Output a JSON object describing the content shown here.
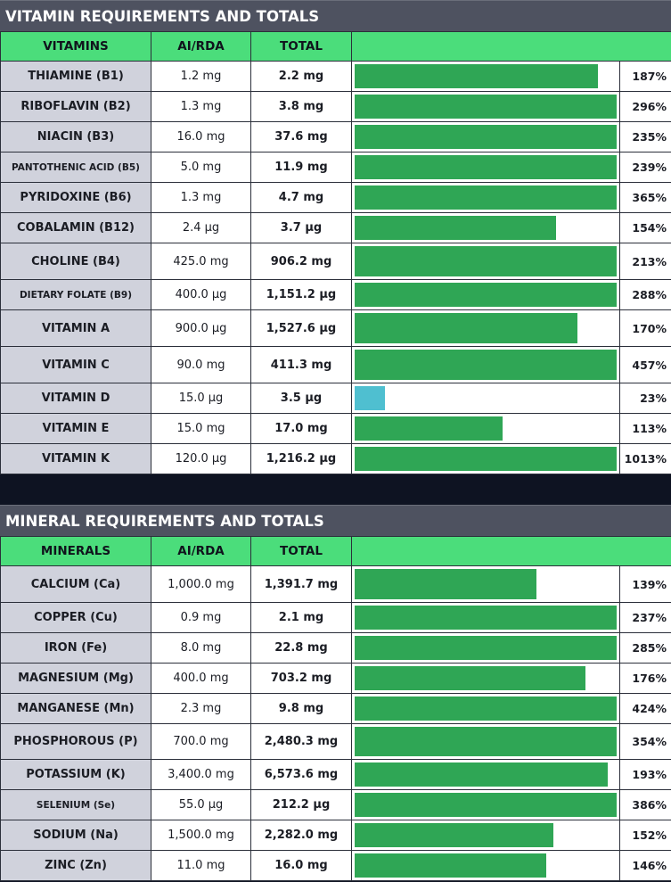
{
  "vitamins": {
    "title": "VITAMIN REQUIREMENTS AND TOTALS",
    "headers": [
      "VITAMINS",
      "AI/RDA",
      "TOTAL"
    ],
    "rows": [
      {
        "name": "THIAMINE (B1)",
        "rda": "1.2 mg",
        "total": "2.2 mg",
        "pct": "187%",
        "fill": 0.93
      },
      {
        "name": "RIBOFLAVIN (B2)",
        "rda": "1.3 mg",
        "total": "3.8 mg",
        "pct": "296%",
        "fill": 1.0
      },
      {
        "name": "NIACIN (B3)",
        "rda": "16.0 mg",
        "total": "37.6 mg",
        "pct": "235%",
        "fill": 1.0
      },
      {
        "name": "PANTOTHENIC ACID (B5)",
        "rda": "5.0 mg",
        "total": "11.9 mg",
        "pct": "239%",
        "fill": 1.0,
        "small": true
      },
      {
        "name": "PYRIDOXINE (B6)",
        "rda": "1.3 mg",
        "total": "4.7 mg",
        "pct": "365%",
        "fill": 1.0
      },
      {
        "name": "COBALAMIN (B12)",
        "rda": "2.4 µg",
        "total": "3.7 µg",
        "pct": "154%",
        "fill": 0.77
      },
      {
        "name": "CHOLINE (B4)",
        "rda": "425.0 mg",
        "total": "906.2 mg",
        "pct": "213%",
        "fill": 1.0
      },
      {
        "name": "DIETARY FOLATE (B9)",
        "rda": "400.0 µg",
        "total": "1,151.2 µg",
        "pct": "288%",
        "fill": 1.0,
        "small": true
      },
      {
        "name": "VITAMIN A",
        "rda": "900.0 µg",
        "total": "1,527.6 µg",
        "pct": "170%",
        "fill": 0.85
      },
      {
        "name": "VITAMIN C",
        "rda": "90.0 mg",
        "total": "411.3 mg",
        "pct": "457%",
        "fill": 1.0
      },
      {
        "name": "VITAMIN D",
        "rda": "15.0 µg",
        "total": "3.5 µg",
        "pct": "23%",
        "fill": 0.115,
        "low": true
      },
      {
        "name": "VITAMIN E",
        "rda": "15.0 mg",
        "total": "17.0 mg",
        "pct": "113%",
        "fill": 0.565
      },
      {
        "name": "VITAMIN K",
        "rda": "120.0 µg",
        "total": "1,216.2 µg",
        "pct": "1013%",
        "fill": 1.0
      }
    ]
  },
  "minerals": {
    "title": "MINERAL REQUIREMENTS AND TOTALS",
    "headers": [
      "MINERALS",
      "AI/RDA",
      "TOTAL"
    ],
    "rows": [
      {
        "name": "CALCIUM (Ca)",
        "rda": "1,000.0 mg",
        "total": "1,391.7 mg",
        "pct": "139%",
        "fill": 0.695
      },
      {
        "name": "COPPER (Cu)",
        "rda": "0.9 mg",
        "total": "2.1 mg",
        "pct": "237%",
        "fill": 1.0
      },
      {
        "name": "IRON (Fe)",
        "rda": "8.0 mg",
        "total": "22.8 mg",
        "pct": "285%",
        "fill": 1.0
      },
      {
        "name": "MAGNESIUM (Mg)",
        "rda": "400.0 mg",
        "total": "703.2 mg",
        "pct": "176%",
        "fill": 0.88
      },
      {
        "name": "MANGANESE (Mn)",
        "rda": "2.3 mg",
        "total": "9.8 mg",
        "pct": "424%",
        "fill": 1.0
      },
      {
        "name": "PHOSPHOROUS (P)",
        "rda": "700.0 mg",
        "total": "2,480.3 mg",
        "pct": "354%",
        "fill": 1.0
      },
      {
        "name": "POTASSIUM (K)",
        "rda": "3,400.0 mg",
        "total": "6,573.6 mg",
        "pct": "193%",
        "fill": 0.965
      },
      {
        "name": "SELENIUM (Se)",
        "rda": "55.0 µg",
        "total": "212.2 µg",
        "pct": "386%",
        "fill": 1.0,
        "small": true
      },
      {
        "name": "SODIUM (Na)",
        "rda": "1,500.0 mg",
        "total": "2,282.0 mg",
        "pct": "152%",
        "fill": 0.76
      },
      {
        "name": "ZINC (Zn)",
        "rda": "11.0 mg",
        "total": "16.0 mg",
        "pct": "146%",
        "fill": 0.73
      }
    ]
  },
  "colors": {
    "header_green": "#4bdd7b",
    "bar_green": "#2fa655",
    "bar_low": "#4fbfd0",
    "name_bg": "#d0d2dc",
    "title_bg": "#4e5260"
  }
}
